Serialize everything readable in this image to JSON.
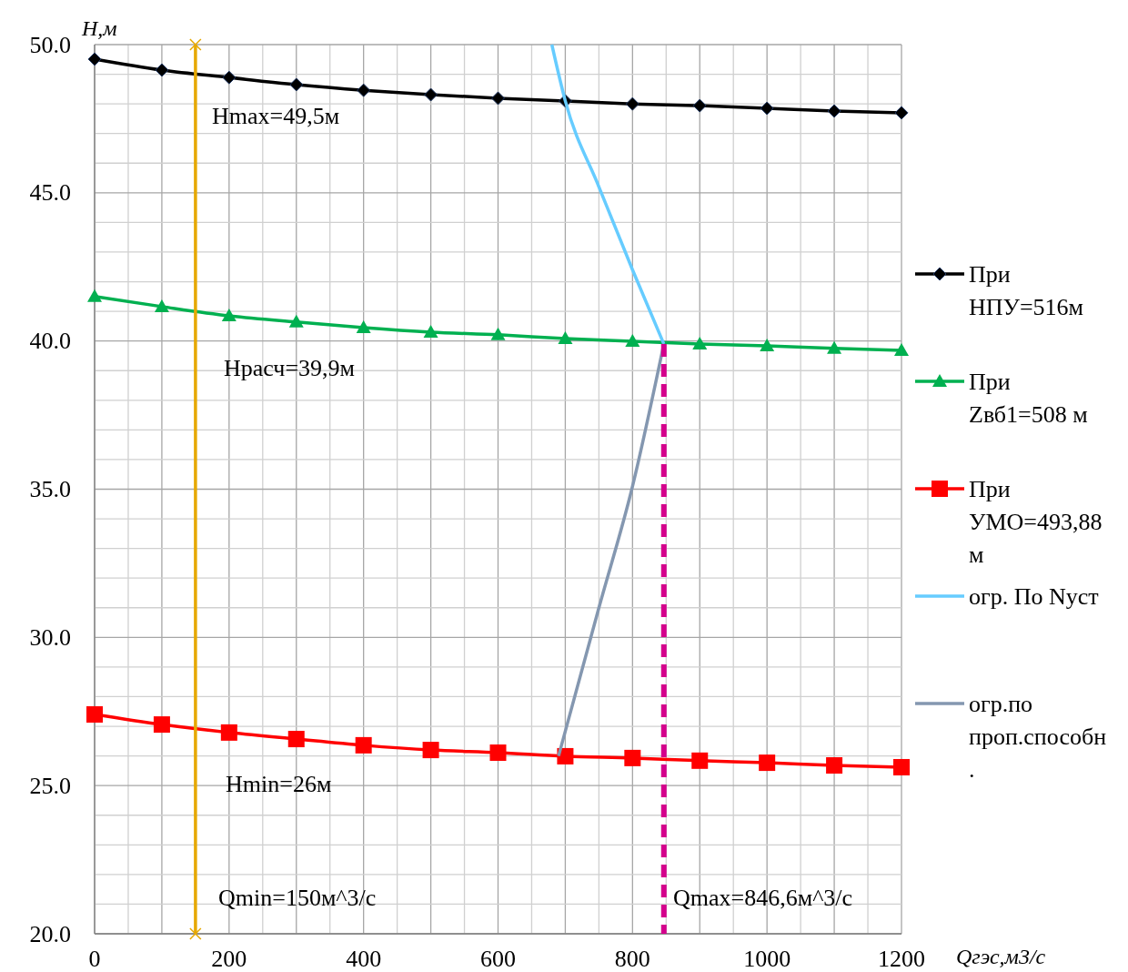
{
  "chart_data": {
    "type": "line",
    "xlabel": "Qгэс,м3/с",
    "ylabel": "H,м",
    "x": [
      0,
      100,
      200,
      300,
      400,
      500,
      600,
      700,
      800,
      900,
      1000,
      1100,
      1200
    ],
    "xlim": [
      0,
      1200
    ],
    "ylim": [
      20,
      50
    ],
    "xticks": [
      0,
      {
        "value": 50,
        "label": null
      },
      {
        "value": 100,
        "label": null
      },
      {
        "value": 150,
        "label": null
      },
      200,
      {
        "value": 250,
        "label": null
      },
      {
        "value": 300,
        "label": null
      },
      {
        "value": 350,
        "label": null
      },
      400,
      {
        "value": 450,
        "label": null
      },
      {
        "value": 500,
        "label": null
      },
      {
        "value": 550,
        "label": null
      },
      600,
      {
        "value": 650,
        "label": null
      },
      {
        "value": 700,
        "label": null
      },
      {
        "value": 750,
        "label": null
      },
      800,
      {
        "value": 850,
        "label": null
      },
      {
        "value": 900,
        "label": null
      },
      {
        "value": 950,
        "label": null
      },
      1000,
      {
        "value": 1050,
        "label": null
      },
      {
        "value": 1100,
        "label": null
      },
      {
        "value": 1150,
        "label": null
      },
      1200
    ],
    "yticks": [
      {
        "value": 20,
        "label": "20.0"
      },
      {
        "value": 21,
        "label": null
      },
      {
        "value": 22,
        "label": null
      },
      {
        "value": 23,
        "label": null
      },
      {
        "value": 24,
        "label": null
      },
      {
        "value": 25,
        "label": "25.0"
      },
      {
        "value": 26,
        "label": null
      },
      {
        "value": 27,
        "label": null
      },
      {
        "value": 28,
        "label": null
      },
      {
        "value": 29,
        "label": null
      },
      {
        "value": 30,
        "label": "30.0"
      },
      {
        "value": 31,
        "label": null
      },
      {
        "value": 32,
        "label": null
      },
      {
        "value": 33,
        "label": null
      },
      {
        "value": 34,
        "label": null
      },
      {
        "value": 35,
        "label": "35.0"
      },
      {
        "value": 36,
        "label": null
      },
      {
        "value": 37,
        "label": null
      },
      {
        "value": 38,
        "label": null
      },
      {
        "value": 39,
        "label": null
      },
      {
        "value": 40,
        "label": "40.0"
      },
      {
        "value": 41,
        "label": null
      },
      {
        "value": 42,
        "label": null
      },
      {
        "value": 43,
        "label": null
      },
      {
        "value": 44,
        "label": null
      },
      {
        "value": 45,
        "label": "45.0"
      },
      {
        "value": 46,
        "label": null
      },
      {
        "value": 47,
        "label": null
      },
      {
        "value": 48,
        "label": null
      },
      {
        "value": 49,
        "label": null
      },
      {
        "value": 50,
        "label": "50.0"
      }
    ],
    "grid": true,
    "legend": "right",
    "line_style": "solid",
    "series": [
      {
        "name": "При НПУ=516м",
        "color": "#000000",
        "marker": "diamond",
        "values": [
          49.51,
          49.14,
          48.89,
          48.65,
          48.46,
          48.31,
          48.19,
          48.1,
          48.0,
          47.94,
          47.85,
          47.76,
          47.7
        ]
      },
      {
        "name": "При Zвб1=508 м",
        "color": "#00b050",
        "marker": "triangle",
        "values": [
          41.5,
          41.16,
          40.85,
          40.64,
          40.45,
          40.3,
          40.21,
          40.08,
          39.99,
          39.9,
          39.84,
          39.75,
          39.68
        ]
      },
      {
        "name": "При УМО=493,88 м",
        "color": "#ff0000",
        "marker": "square",
        "values": [
          27.4,
          27.06,
          26.79,
          26.57,
          26.36,
          26.2,
          26.11,
          25.99,
          25.93,
          25.84,
          25.77,
          25.68,
          25.62
        ]
      },
      {
        "name": "огр. По Nуст",
        "color": "#66ccff",
        "marker": "none",
        "x": [
          680,
          700,
          750,
          800,
          846.6
        ],
        "values": [
          50,
          48.1,
          45.2,
          42.4,
          39.9
        ]
      },
      {
        "name": "огр.по проп.способн.",
        "color": "#8497b0",
        "marker": "none",
        "x": [
          690,
          750,
          800,
          846.6
        ],
        "values": [
          26.0,
          31.0,
          35.1,
          39.9
        ]
      },
      {
        "color": "#e6a800",
        "marker": "cross",
        "x": [
          150,
          150
        ],
        "values": [
          20,
          50
        ]
      },
      {
        "color": "#d4008c",
        "marker": "none",
        "line_style": "dashed",
        "x": [
          846.6,
          846.6
        ],
        "values": [
          39.9,
          20
        ]
      }
    ],
    "annotations": [
      "Hmax=49,5м",
      "Hрасч=39,9м",
      "Hmin=26м",
      "Qmin=150м^3/с",
      "Qmax=846,6м^3/с"
    ]
  }
}
